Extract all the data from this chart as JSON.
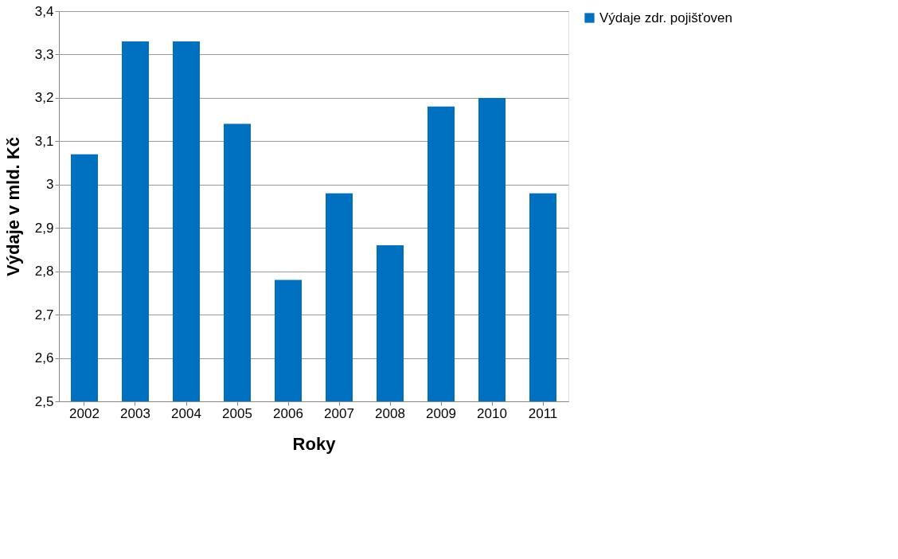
{
  "chart_data": {
    "type": "bar",
    "xlabel": "Roky",
    "ylabel": "Výdaje v mld. Kč",
    "categories": [
      "2002",
      "2003",
      "2004",
      "2005",
      "2006",
      "2007",
      "2008",
      "2009",
      "2010",
      "2011"
    ],
    "series": [
      {
        "name": "Výdaje zdr. pojišťoven",
        "color": "#0070c0",
        "values": [
          3.07,
          3.33,
          3.33,
          3.14,
          2.78,
          2.98,
          2.86,
          3.18,
          3.2,
          2.98
        ]
      }
    ],
    "ylim": [
      2.5,
      3.4
    ],
    "yticks": [
      {
        "value": 2.5,
        "label": "2,5"
      },
      {
        "value": 2.6,
        "label": "2,6"
      },
      {
        "value": 2.7,
        "label": "2,7"
      },
      {
        "value": 2.8,
        "label": "2,8"
      },
      {
        "value": 2.9,
        "label": "2,9"
      },
      3,
      {
        "value": 3.1,
        "label": "3,1"
      },
      {
        "value": 3.2,
        "label": "3,2"
      },
      {
        "value": 3.3,
        "label": "3,3"
      },
      {
        "value": 3.4,
        "label": "3,4"
      }
    ],
    "grid": "y",
    "legend": "right"
  }
}
